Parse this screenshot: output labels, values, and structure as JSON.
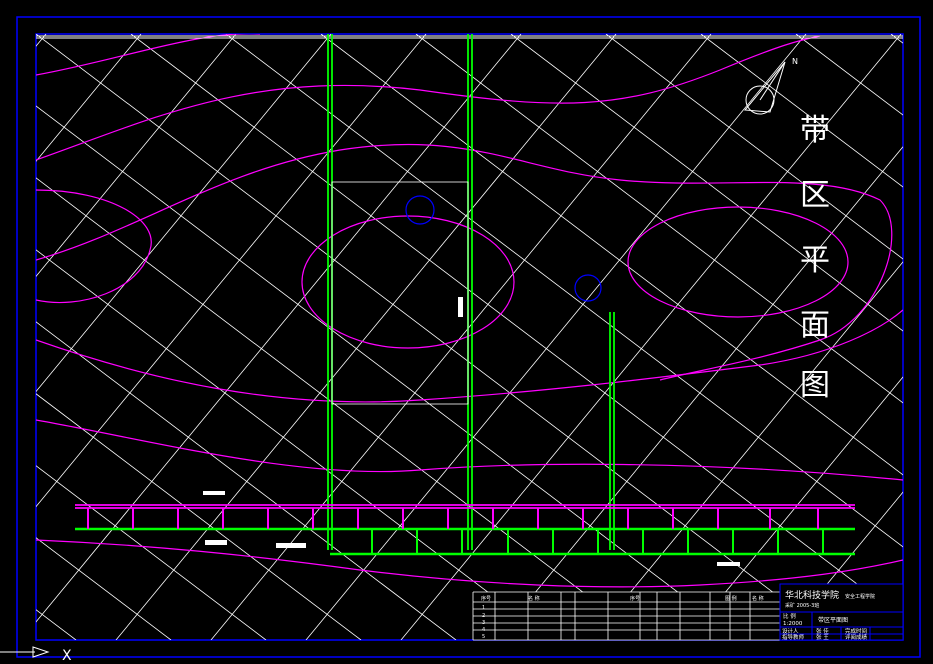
{
  "drawing": {
    "title_chars": [
      "带",
      "区",
      "平",
      "面",
      "图"
    ],
    "north_label": "N",
    "ucs_label": "X",
    "colors": {
      "background": "#000000",
      "frame": "#0000ff",
      "grid": "#ffffff",
      "contour": "#ff00ff",
      "roadway": "#00ff00",
      "equipment": "#0000ff"
    }
  },
  "legend_table": {
    "headers": [
      "序号",
      "",
      "名  称",
      "",
      "",
      "",
      "序号",
      "",
      "",
      "",
      "图  例",
      "名  称"
    ],
    "row_numbers": [
      "1",
      "2",
      "3",
      "4",
      "5"
    ]
  },
  "title_block": {
    "school": "华北科技学院",
    "department": "安全工程学院",
    "class": "采矿 2005-3班",
    "scale_label": "比  例",
    "scale_value": "1:2000",
    "drawing_name": "带区平面图",
    "designer_label": "设计人",
    "designer": "张  佳",
    "finish_label": "完成时间",
    "advisor_label": "指导教师",
    "advisor": "张  王",
    "grade_label": "评阅成绩"
  }
}
